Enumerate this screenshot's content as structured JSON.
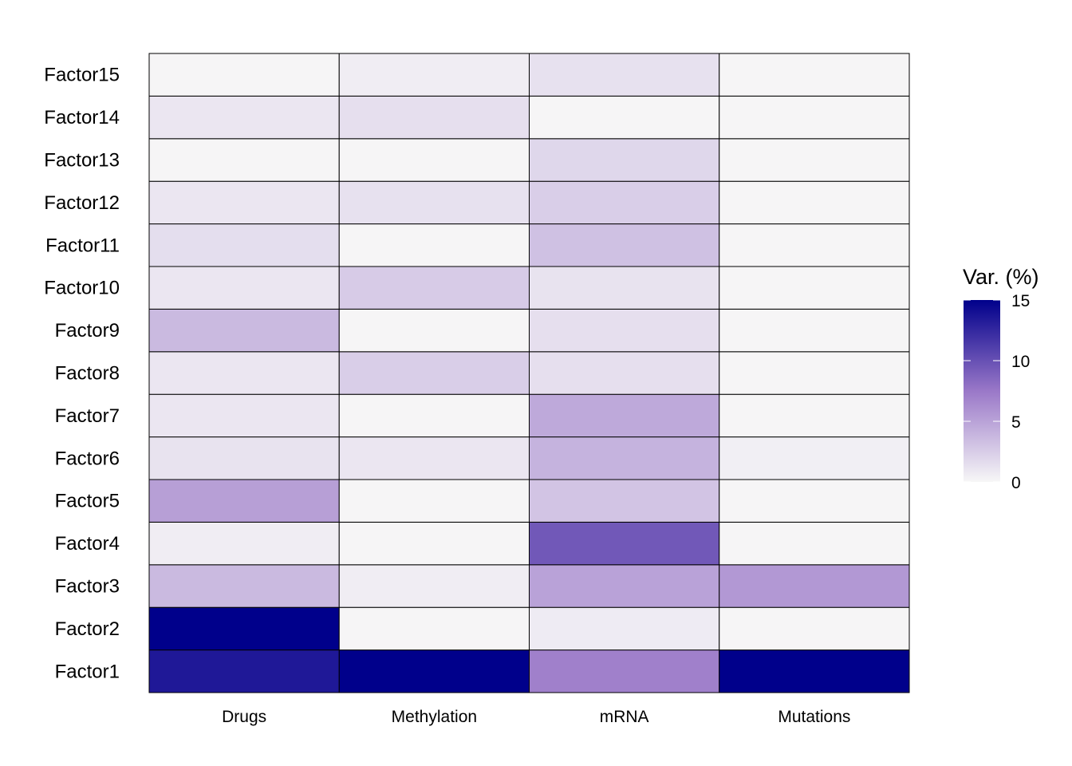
{
  "chart_data": {
    "type": "heatmap",
    "x_categories": [
      "Drugs",
      "Methylation",
      "mRNA",
      "Mutations"
    ],
    "y_categories": [
      "Factor1",
      "Factor2",
      "Factor3",
      "Factor4",
      "Factor5",
      "Factor6",
      "Factor7",
      "Factor8",
      "Factor9",
      "Factor10",
      "Factor11",
      "Factor12",
      "Factor13",
      "Factor14",
      "Factor15"
    ],
    "values": [
      [
        13.5,
        15.5,
        7.0,
        15.5
      ],
      [
        15.5,
        0.1,
        0.7,
        0.1
      ],
      [
        3.6,
        0.6,
        5.0,
        5.6
      ],
      [
        0.6,
        0.1,
        9.5,
        0.1
      ],
      [
        5.2,
        0.1,
        3.0,
        0.1
      ],
      [
        1.2,
        1.0,
        4.0,
        0.5
      ],
      [
        1.0,
        0.1,
        4.6,
        0.1
      ],
      [
        1.0,
        2.4,
        1.4,
        0.1
      ],
      [
        3.6,
        0.1,
        1.4,
        0.1
      ],
      [
        1.0,
        2.6,
        1.2,
        0.1
      ],
      [
        1.5,
        0.1,
        3.2,
        0.1
      ],
      [
        1.0,
        1.3,
        2.4,
        0.1
      ],
      [
        0.1,
        0.1,
        1.9,
        0.1
      ],
      [
        1.0,
        1.4,
        0.1,
        0.1
      ],
      [
        0.1,
        0.6,
        1.3,
        0.1
      ]
    ],
    "colorbar": {
      "title": "Var. (%)",
      "min": 0,
      "max": 15,
      "ticks": [
        "0",
        "5",
        "10",
        "15"
      ],
      "low_color": "#F7F7F7",
      "mid_color": "#9A78C8",
      "high_color": "#00008B"
    },
    "title": "",
    "xlabel": "",
    "ylabel": ""
  }
}
